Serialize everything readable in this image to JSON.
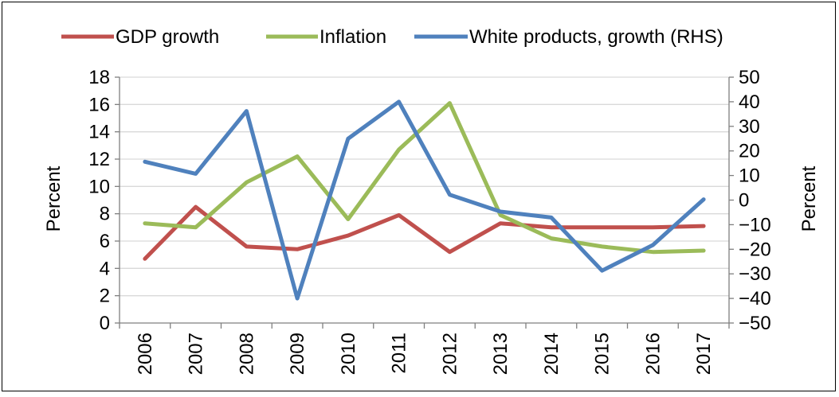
{
  "chart_data": {
    "type": "line",
    "title": "",
    "x": [
      "2006",
      "2007",
      "2008",
      "2009",
      "2010",
      "2011",
      "2012",
      "2013",
      "2014",
      "2015",
      "2016",
      "2017"
    ],
    "ylabel_left": "Percent",
    "ylabel_right": "Percent",
    "ylim_left": [
      0,
      18
    ],
    "ylim_right": [
      -50,
      50
    ],
    "yticks_left": [
      0,
      2,
      4,
      6,
      8,
      10,
      12,
      14,
      16,
      18
    ],
    "yticks_right": [
      -50,
      -40,
      -30,
      -20,
      -10,
      0,
      10,
      20,
      30,
      40,
      50
    ],
    "grid": true,
    "legend_position": "top",
    "series": [
      {
        "name": "GDP growth",
        "axis": "left",
        "color": "#C0504D",
        "values": [
          4.7,
          8.5,
          5.6,
          5.4,
          6.4,
          7.9,
          5.2,
          7.3,
          7.0,
          7.0,
          7.0,
          7.1
        ]
      },
      {
        "name": "Inflation",
        "axis": "left",
        "color": "#9BBB59",
        "values": [
          7.3,
          7.0,
          10.3,
          12.2,
          7.6,
          12.7,
          16.1,
          7.9,
          6.2,
          5.6,
          5.2,
          5.3
        ]
      },
      {
        "name": "White products, growth (RHS)",
        "axis": "right",
        "color": "#4F81BD",
        "values": [
          15.6,
          10.7,
          36.2,
          -40.0,
          25.0,
          40.0,
          2.2,
          -4.7,
          -7.1,
          -28.7,
          -18.3,
          0.3
        ]
      }
    ]
  }
}
